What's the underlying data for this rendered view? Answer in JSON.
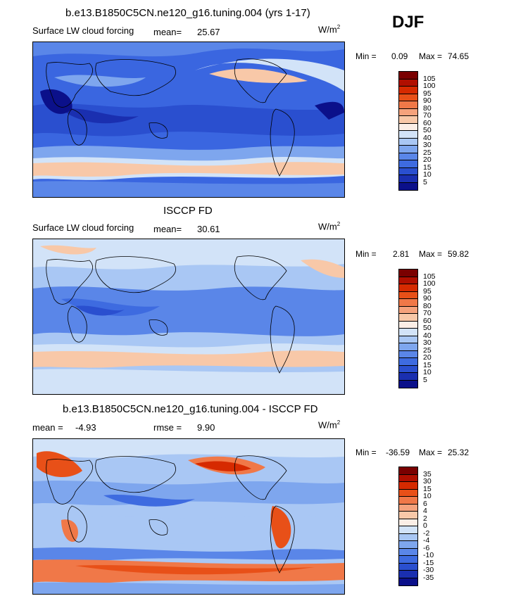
{
  "season": "DJF",
  "panels": [
    {
      "title": "b.e13.B1850C5CN.ne120_g16.tuning.004 (yrs 1-17)",
      "variable": "Surface LW cloud forcing",
      "mean_label": "mean=",
      "mean_value": "25.67",
      "units": "W/m",
      "units_exp": "2",
      "min_label": "Min =",
      "min_value": "0.09",
      "max_label": "Max =",
      "max_value": "74.65",
      "colorbar": {
        "labels": [
          "105",
          "100",
          "95",
          "90",
          "80",
          "70",
          "60",
          "50",
          "40",
          "30",
          "25",
          "20",
          "15",
          "10",
          "5"
        ],
        "colors": [
          "#7a0000",
          "#b00f00",
          "#d62a00",
          "#e85018",
          "#f07848",
          "#f5a27c",
          "#f8c8a8",
          "#fbeee6",
          "#d2e3f8",
          "#a9c7f4",
          "#7ea6ee",
          "#5a86e8",
          "#3e6be0",
          "#2a4fcf",
          "#1a2fb0",
          "#0b108a"
        ]
      }
    },
    {
      "title": "ISCCP FD",
      "variable": "Surface LW cloud forcing",
      "mean_label": "mean=",
      "mean_value": "30.61",
      "units": "W/m",
      "units_exp": "2",
      "min_label": "Min =",
      "min_value": "2.81",
      "max_label": "Max =",
      "max_value": "59.82",
      "colorbar": {
        "labels": [
          "105",
          "100",
          "95",
          "90",
          "80",
          "70",
          "60",
          "50",
          "40",
          "30",
          "25",
          "20",
          "15",
          "10",
          "5"
        ],
        "colors": [
          "#7a0000",
          "#b00f00",
          "#d62a00",
          "#e85018",
          "#f07848",
          "#f5a27c",
          "#f8c8a8",
          "#fbeee6",
          "#d2e3f8",
          "#a9c7f4",
          "#7ea6ee",
          "#5a86e8",
          "#3e6be0",
          "#2a4fcf",
          "#1a2fb0",
          "#0b108a"
        ]
      }
    },
    {
      "title": "b.e13.B1850C5CN.ne120_g16.tuning.004 - ISCCP FD",
      "mean_label": "mean =",
      "mean_value": "-4.93",
      "rmse_label": "rmse =",
      "rmse_value": "9.90",
      "units": "W/m",
      "units_exp": "2",
      "min_label": "Min =",
      "min_value": "-36.59",
      "max_label": "Max =",
      "max_value": "25.32",
      "colorbar": {
        "labels": [
          "35",
          "30",
          "15",
          "10",
          "6",
          "4",
          "2",
          "0",
          "-2",
          "-4",
          "-6",
          "-10",
          "-15",
          "-30",
          "-35"
        ],
        "colors": [
          "#7a0000",
          "#b00f00",
          "#d62a00",
          "#e85018",
          "#f07848",
          "#f5a27c",
          "#f8c8a8",
          "#fbeee6",
          "#d2e3f8",
          "#a9c7f4",
          "#7ea6ee",
          "#5a86e8",
          "#3e6be0",
          "#2a4fcf",
          "#1a2fb0",
          "#0b108a"
        ]
      }
    }
  ]
}
